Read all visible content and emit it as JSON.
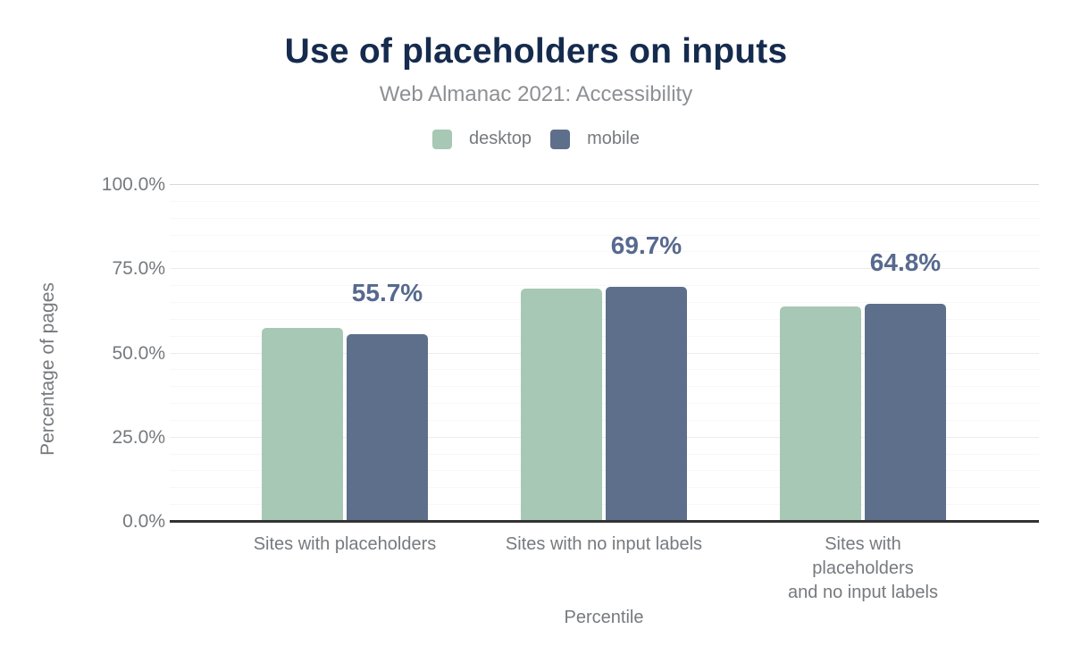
{
  "header": {
    "title": "Use of placeholders on inputs",
    "subtitle": "Web Almanac 2021: Accessibility"
  },
  "chart_data": {
    "type": "bar",
    "title": "Use of placeholders on inputs",
    "subtitle": "Web Almanac 2021: Accessibility",
    "xlabel": "Percentile",
    "ylabel": "Percentage of pages",
    "categories": [
      "Sites with placeholders",
      "Sites with no input labels",
      "Sites with placeholders\nand no input labels"
    ],
    "series": [
      {
        "name": "desktop",
        "color": "#a6c8b5",
        "values": [
          57.6,
          69.3,
          64.0
        ]
      },
      {
        "name": "mobile",
        "color": "#5e6f8c",
        "values": [
          55.7,
          69.7,
          64.8
        ]
      }
    ],
    "value_labels": [
      "55.7%",
      "69.7%",
      "64.8%"
    ],
    "value_labels_series": "mobile",
    "ylim": [
      0,
      100
    ],
    "yticks": [
      "0.0%",
      "25.0%",
      "50.0%",
      "75.0%",
      "100.0%"
    ],
    "grid": "horizontal, minor every 5%, major every 25%",
    "legend_position": "top"
  },
  "colors": {
    "title": "#152b4e",
    "muted_text": "#767a7e",
    "subtitle_text": "#8d9093",
    "value_label": "#57698e",
    "axis_line": "#333333",
    "grid_major": "#ececec",
    "grid_minor": "#f7f7f7",
    "desktop": "#a6c8b5",
    "mobile": "#5e6f8c",
    "background": "#ffffff"
  }
}
